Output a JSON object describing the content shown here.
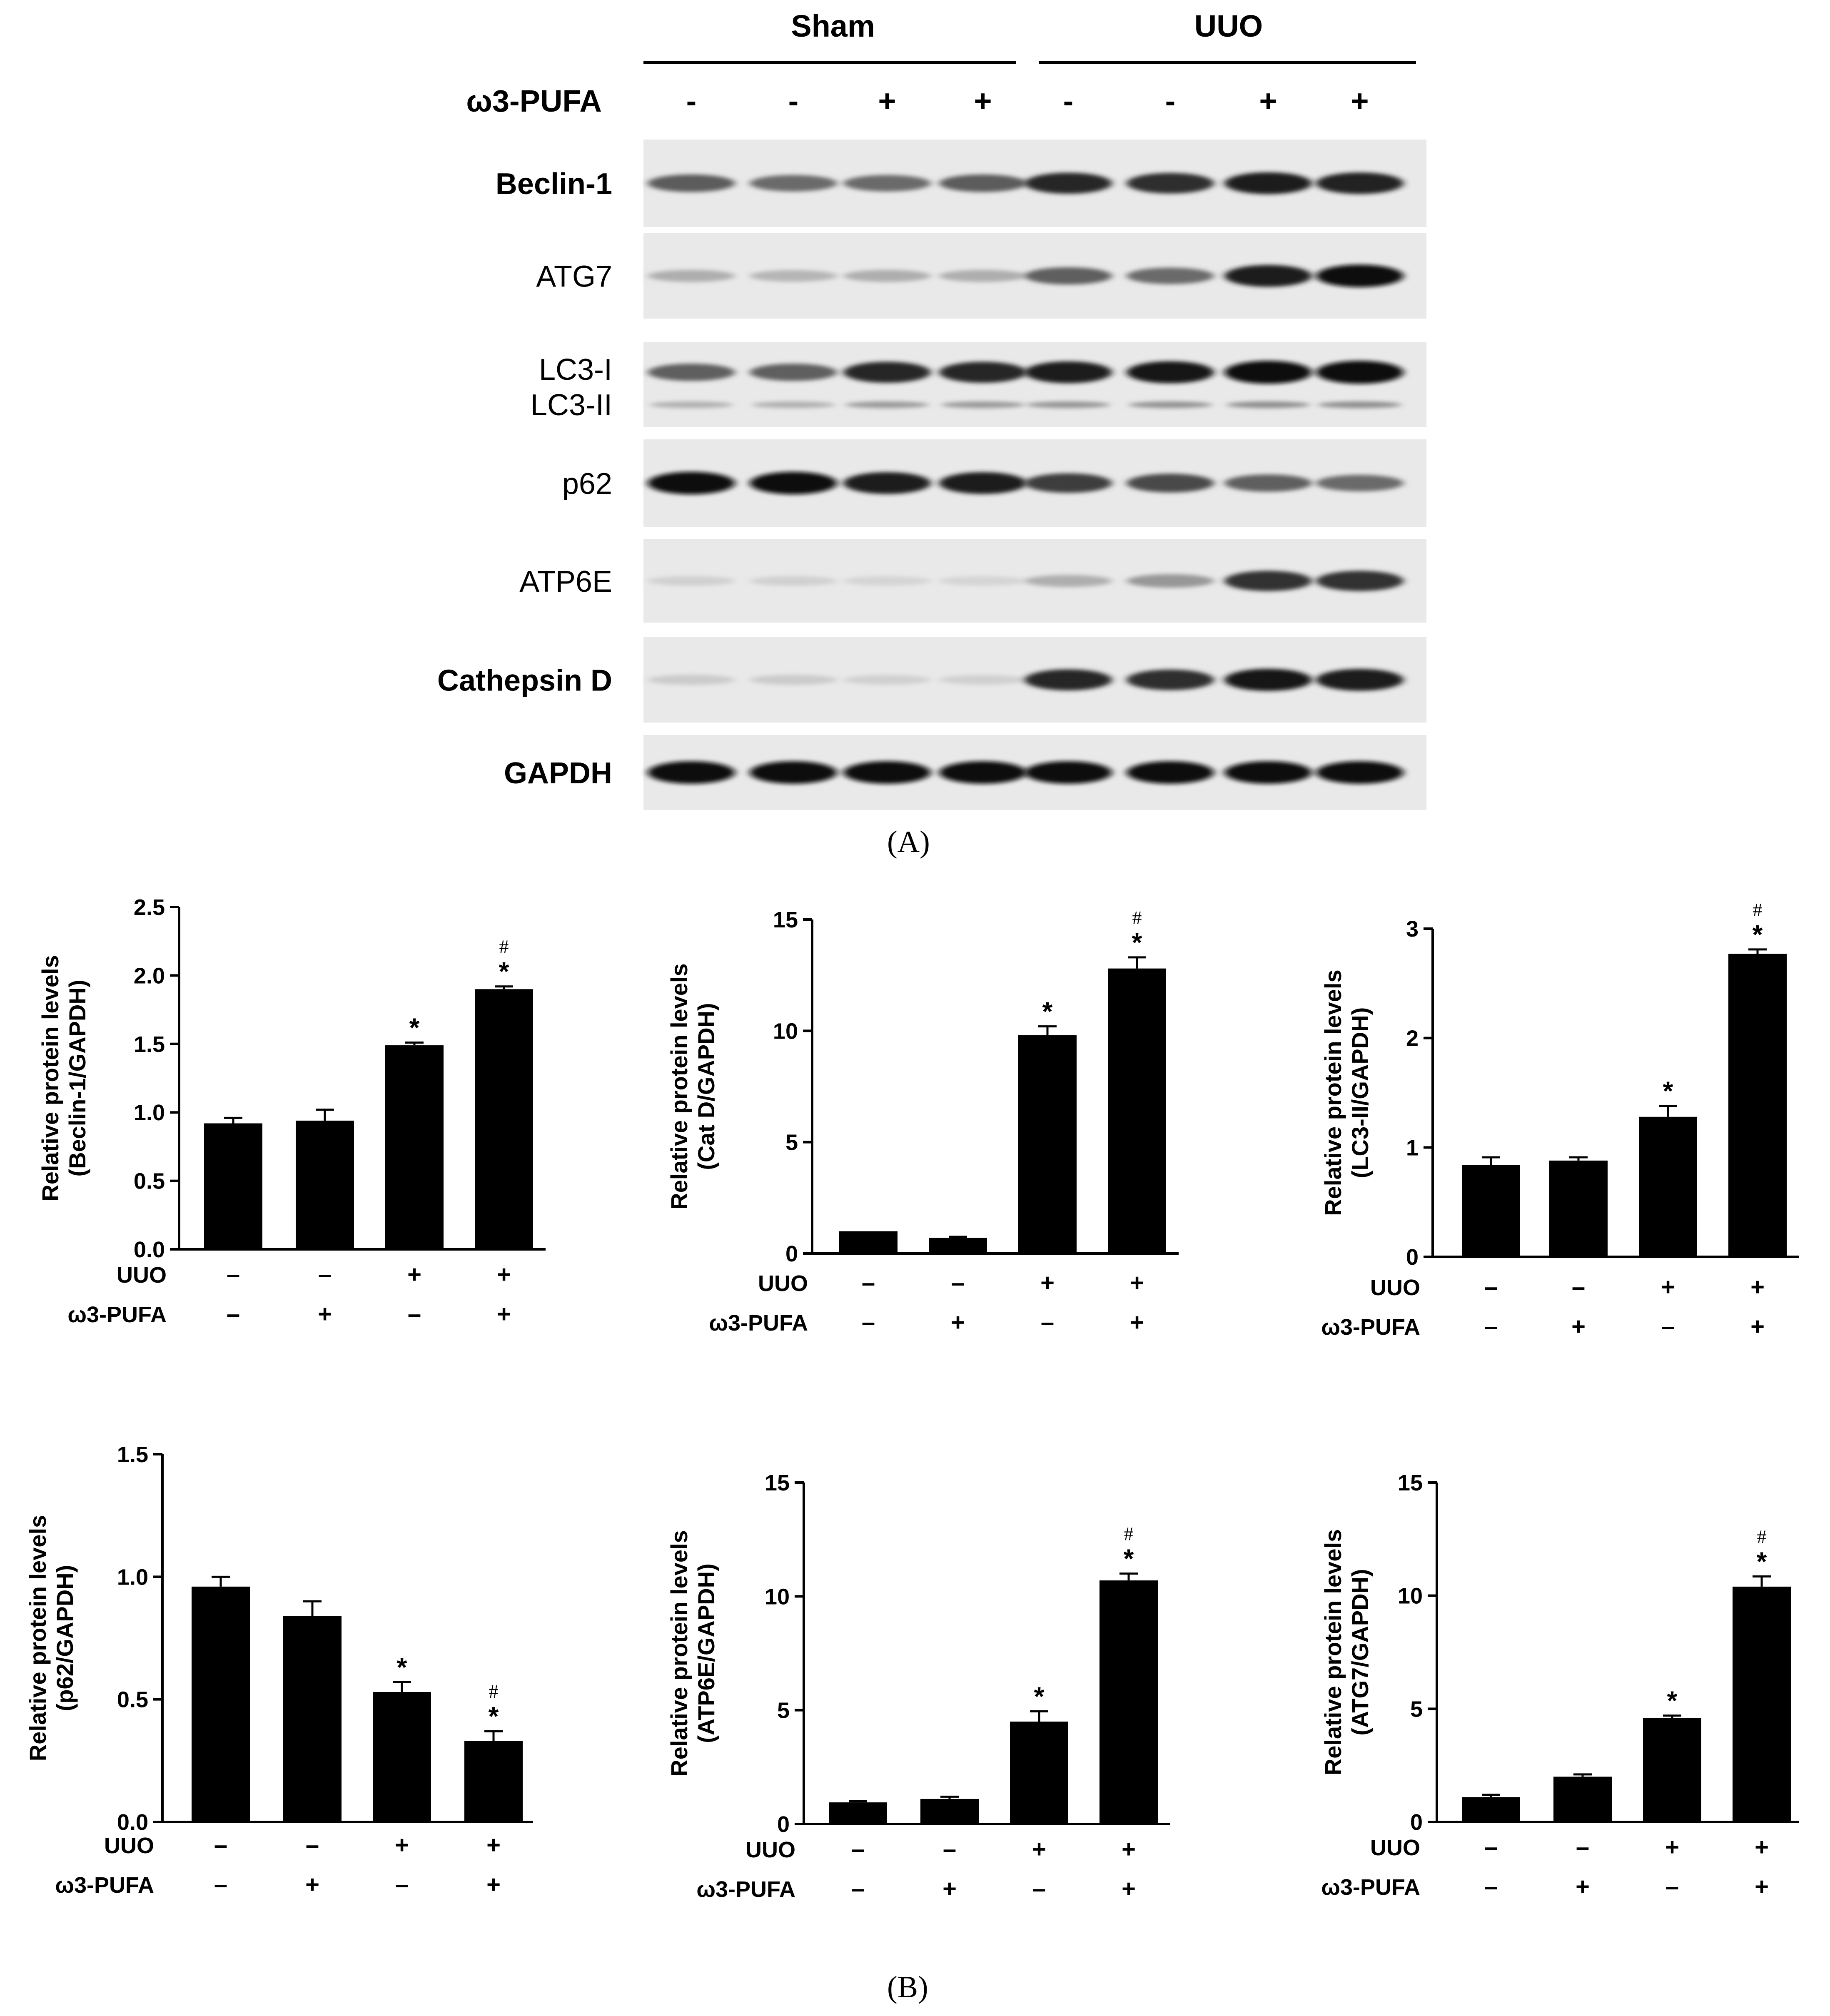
{
  "blot": {
    "groups": [
      "Sham",
      "UUO"
    ],
    "treatment_label": "ω3-PUFA",
    "treatment_signs": [
      "-",
      "-",
      "+",
      "+",
      "-",
      "-",
      "+",
      "+"
    ],
    "rows": [
      {
        "label": "Beclin-1",
        "bold": true,
        "bands": [
          0.62,
          0.55,
          0.55,
          0.62,
          0.85,
          0.82,
          0.9,
          0.88
        ]
      },
      {
        "label": "ATG7",
        "bold": false,
        "bands": [
          0.25,
          0.22,
          0.25,
          0.25,
          0.6,
          0.55,
          0.9,
          0.95
        ]
      },
      {
        "label": "LC3-I",
        "label2": "LC3-II",
        "bold": false,
        "bands": [
          0.6,
          0.6,
          0.85,
          0.85,
          0.9,
          0.92,
          0.98,
          0.98
        ]
      },
      {
        "label": "p62",
        "bold": false,
        "bands": [
          0.95,
          0.95,
          0.9,
          0.9,
          0.75,
          0.7,
          0.6,
          0.55
        ]
      },
      {
        "label": "ATP6E",
        "bold": false,
        "bands": [
          0.1,
          0.1,
          0.08,
          0.08,
          0.25,
          0.35,
          0.8,
          0.8
        ]
      },
      {
        "label": "Cathepsin D",
        "bold": true,
        "bands": [
          0.12,
          0.12,
          0.1,
          0.1,
          0.85,
          0.82,
          0.92,
          0.9
        ]
      },
      {
        "label": "GAPDH",
        "bold": true,
        "bands": [
          0.95,
          0.95,
          0.95,
          0.95,
          0.95,
          0.95,
          0.95,
          0.95
        ]
      }
    ]
  },
  "panels": {
    "a": "(A)",
    "b": "(B)"
  },
  "chart_data": [
    {
      "type": "bar",
      "ylabel": "Relative protein levels",
      "ylabel2": "(Beclin-1/GAPDH)",
      "ylim": [
        0,
        2.5
      ],
      "yticks": [
        "0.0",
        "0.5",
        "1.0",
        "1.5",
        "2.0",
        "2.5"
      ],
      "values": [
        0.92,
        0.94,
        1.49,
        1.9
      ],
      "errors": [
        0.04,
        0.08,
        0.02,
        0.02
      ],
      "marks": [
        "",
        "",
        "*",
        "*#"
      ],
      "row1_label": "UUO",
      "row1": [
        "–",
        "–",
        "+",
        "+"
      ],
      "row2_label": "ω3-PUFA",
      "row2": [
        "–",
        "+",
        "–",
        "+"
      ]
    },
    {
      "type": "bar",
      "ylabel": "Relative protein levels",
      "ylabel2": "(Cat D/GAPDH)",
      "ylim": [
        0,
        15
      ],
      "yticks": [
        "0",
        "5",
        "10",
        "15"
      ],
      "values": [
        1.0,
        0.7,
        9.8,
        12.8
      ],
      "errors": [
        0.0,
        0.05,
        0.4,
        0.5
      ],
      "marks": [
        "",
        "",
        "*",
        "*#"
      ],
      "row1_label": "UUO",
      "row1": [
        "–",
        "–",
        "+",
        "+"
      ],
      "row2_label": "ω3-PUFA",
      "row2": [
        "–",
        "+",
        "–",
        "+"
      ]
    },
    {
      "type": "bar",
      "ylabel": "Relative protein levels",
      "ylabel2": "(LC3-II/GAPDH)",
      "ylim": [
        0,
        3
      ],
      "yticks": [
        "0",
        "1",
        "2",
        "3"
      ],
      "values": [
        0.84,
        0.88,
        1.28,
        2.77
      ],
      "errors": [
        0.07,
        0.03,
        0.1,
        0.04
      ],
      "marks": [
        "",
        "",
        "*",
        "*#"
      ],
      "row1_label": "UUO",
      "row1": [
        "–",
        "–",
        "+",
        "+"
      ],
      "row2_label": "ω3-PUFA",
      "row2": [
        "–",
        "+",
        "–",
        "+"
      ]
    },
    {
      "type": "bar",
      "ylabel": "Relative protein levels",
      "ylabel2": "(p62/GAPDH)",
      "ylim": [
        0,
        1.5
      ],
      "yticks": [
        "0.0",
        "0.5",
        "1.0",
        "1.5"
      ],
      "values": [
        0.96,
        0.84,
        0.53,
        0.33
      ],
      "errors": [
        0.04,
        0.06,
        0.04,
        0.04
      ],
      "marks": [
        "",
        "",
        "*",
        "*#"
      ],
      "row1_label": "UUO",
      "row1": [
        "–",
        "–",
        "+",
        "+"
      ],
      "row2_label": "ω3-PUFA",
      "row2": [
        "–",
        "+",
        "–",
        "+"
      ]
    },
    {
      "type": "bar",
      "ylabel": "Relative protein levels",
      "ylabel2": "(ATP6E/GAPDH)",
      "ylim": [
        0,
        15
      ],
      "yticks": [
        "0",
        "5",
        "10",
        "15"
      ],
      "values": [
        0.95,
        1.1,
        4.5,
        10.7
      ],
      "errors": [
        0.05,
        0.1,
        0.45,
        0.3
      ],
      "marks": [
        "",
        "",
        "*",
        "*#"
      ],
      "row1_label": "UUO",
      "row1": [
        "–",
        "–",
        "+",
        "+"
      ],
      "row2_label": "ω3-PUFA",
      "row2": [
        "–",
        "+",
        "–",
        "+"
      ]
    },
    {
      "type": "bar",
      "ylabel": "Relative protein levels",
      "ylabel2": "(ATG7/GAPDH)",
      "ylim": [
        0,
        15
      ],
      "yticks": [
        "0",
        "5",
        "10",
        "15"
      ],
      "values": [
        1.1,
        2.0,
        4.6,
        10.4
      ],
      "errors": [
        0.1,
        0.1,
        0.1,
        0.45
      ],
      "marks": [
        "",
        "",
        "*",
        "*#"
      ],
      "row1_label": "UUO",
      "row1": [
        "–",
        "–",
        "+",
        "+"
      ],
      "row2_label": "ω3-PUFA",
      "row2": [
        "–",
        "+",
        "–",
        "+"
      ]
    }
  ]
}
